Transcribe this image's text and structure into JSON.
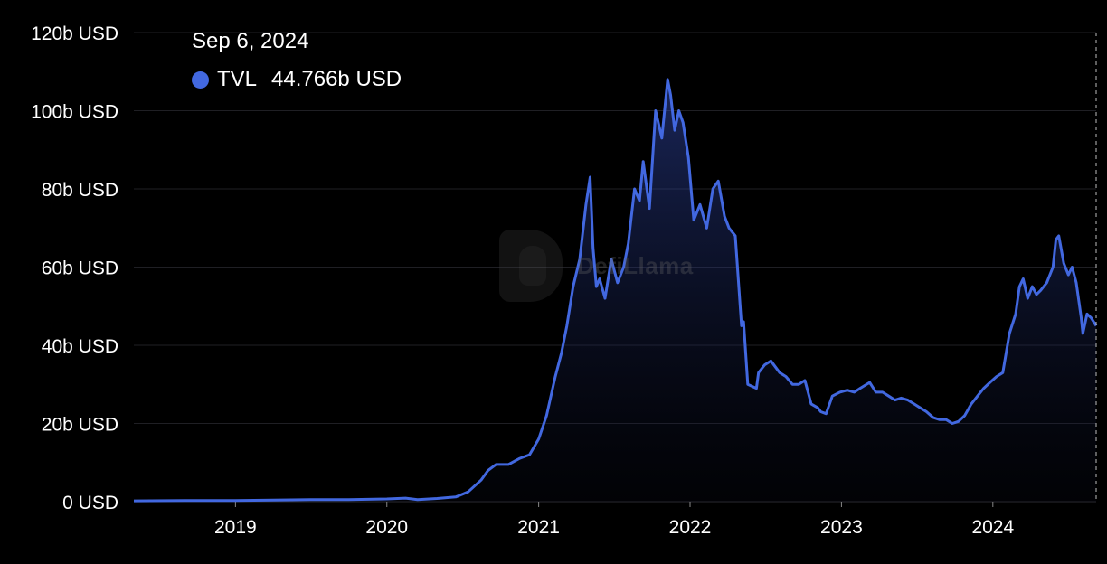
{
  "tooltip": {
    "date": "Sep 6, 2024",
    "series": "TVL",
    "value": "44.766b USD"
  },
  "watermark": {
    "text": "DefiLlama"
  },
  "colors": {
    "line": "#4268e0",
    "grid": "#1f1f24",
    "text": "#ffffff",
    "background": "#000000"
  },
  "chart_data": {
    "type": "area",
    "title": "",
    "xlabel": "",
    "ylabel": "",
    "ylim": [
      0,
      120
    ],
    "yticks": [
      "0 USD",
      "20b USD",
      "40b USD",
      "60b USD",
      "80b USD",
      "100b USD",
      "120b USD"
    ],
    "xticks": [
      "2019",
      "2020",
      "2021",
      "2022",
      "2023",
      "2024"
    ],
    "grid": true,
    "legend": "none",
    "series": [
      {
        "name": "TVL",
        "unit": "b USD",
        "x": [
          "2018-05-01",
          "2018-09-01",
          "2019-01-01",
          "2019-04-01",
          "2019-07-01",
          "2019-10-01",
          "2020-01-01",
          "2020-02-15",
          "2020-03-15",
          "2020-05-01",
          "2020-06-15",
          "2020-07-15",
          "2020-08-15",
          "2020-09-01",
          "2020-09-20",
          "2020-10-20",
          "2020-11-15",
          "2020-12-10",
          "2021-01-01",
          "2021-01-20",
          "2021-02-10",
          "2021-02-25",
          "2021-03-10",
          "2021-03-25",
          "2021-04-10",
          "2021-04-25",
          "2021-05-05",
          "2021-05-12",
          "2021-05-20",
          "2021-05-28",
          "2021-06-10",
          "2021-06-25",
          "2021-07-10",
          "2021-07-25",
          "2021-08-05",
          "2021-08-20",
          "2021-09-01",
          "2021-09-10",
          "2021-09-25",
          "2021-10-10",
          "2021-10-25",
          "2021-11-08",
          "2021-11-15",
          "2021-11-25",
          "2021-12-05",
          "2021-12-15",
          "2021-12-28",
          "2022-01-10",
          "2022-01-25",
          "2022-02-10",
          "2022-02-25",
          "2022-03-10",
          "2022-03-25",
          "2022-04-05",
          "2022-04-20",
          "2022-05-05",
          "2022-05-10",
          "2022-05-20",
          "2022-06-10",
          "2022-06-15",
          "2022-06-30",
          "2022-07-15",
          "2022-08-05",
          "2022-08-20",
          "2022-09-05",
          "2022-09-20",
          "2022-10-05",
          "2022-10-20",
          "2022-11-05",
          "2022-11-12",
          "2022-11-25",
          "2022-12-10",
          "2022-12-28",
          "2023-01-15",
          "2023-02-01",
          "2023-02-15",
          "2023-03-10",
          "2023-03-25",
          "2023-04-10",
          "2023-04-25",
          "2023-05-10",
          "2023-05-25",
          "2023-06-10",
          "2023-06-25",
          "2023-07-10",
          "2023-07-25",
          "2023-08-10",
          "2023-08-25",
          "2023-09-10",
          "2023-09-25",
          "2023-10-10",
          "2023-10-25",
          "2023-11-10",
          "2023-11-25",
          "2023-12-10",
          "2023-12-25",
          "2024-01-10",
          "2024-01-25",
          "2024-02-10",
          "2024-02-25",
          "2024-03-05",
          "2024-03-14",
          "2024-03-25",
          "2024-04-05",
          "2024-04-15",
          "2024-04-25",
          "2024-05-10",
          "2024-05-25",
          "2024-06-01",
          "2024-06-08",
          "2024-06-20",
          "2024-07-01",
          "2024-07-10",
          "2024-07-20",
          "2024-08-01",
          "2024-08-05",
          "2024-08-15",
          "2024-08-25",
          "2024-09-06"
        ],
        "values": [
          0.2,
          0.3,
          0.3,
          0.4,
          0.5,
          0.5,
          0.7,
          0.9,
          0.5,
          0.8,
          1.2,
          2.5,
          5.5,
          8.0,
          9.5,
          9.5,
          11.0,
          12.0,
          16.0,
          22.0,
          32.0,
          38.0,
          45.0,
          55.0,
          62.0,
          76.0,
          83.0,
          65.0,
          55.0,
          57.0,
          52.0,
          62.0,
          56.0,
          60.0,
          66.0,
          80.0,
          77.0,
          87.0,
          75.0,
          100.0,
          93.0,
          108.0,
          104.0,
          95.0,
          100.0,
          97.0,
          88.0,
          72.0,
          76.0,
          70.0,
          80.0,
          82.0,
          73.0,
          70.0,
          68.0,
          45.0,
          46.0,
          30.0,
          29.0,
          33.0,
          35.0,
          36.0,
          33.0,
          32.0,
          30.0,
          30.0,
          31.0,
          25.0,
          24.0,
          23.0,
          22.5,
          27.0,
          28.0,
          28.5,
          28.0,
          29.0,
          30.5,
          28.0,
          28.0,
          27.0,
          26.0,
          26.5,
          26.0,
          25.0,
          24.0,
          23.0,
          21.5,
          21.0,
          21.0,
          20.0,
          20.5,
          22.0,
          25.0,
          27.0,
          29.0,
          30.5,
          32.0,
          33.0,
          43.0,
          48.0,
          55.0,
          57.0,
          52.0,
          55.0,
          53.0,
          54.0,
          56.0,
          60.0,
          67.0,
          68.0,
          61.0,
          58.0,
          60.0,
          56.0,
          47.0,
          43.0,
          48.0,
          47.0,
          45.0
        ]
      }
    ]
  }
}
